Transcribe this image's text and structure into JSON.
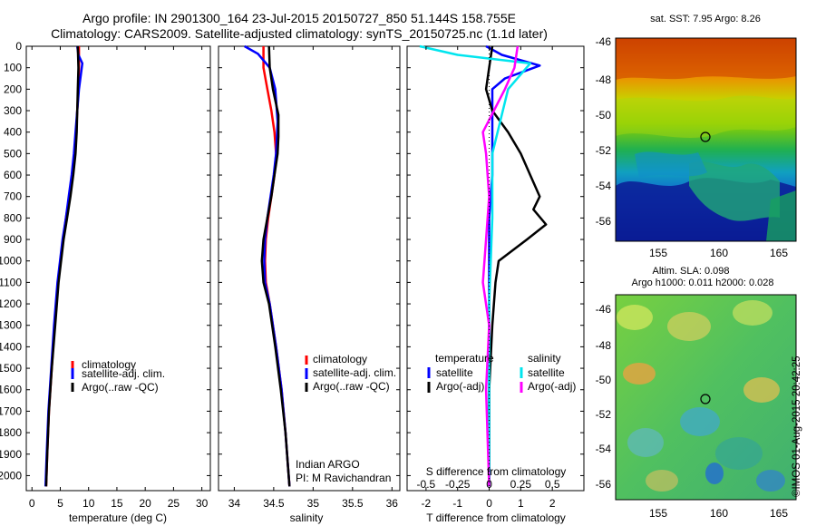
{
  "header": {
    "line1": "Argo profile: IN 2901300_164 23-Jul-2015 20150727_850 51.144S 158.755E",
    "line2": "Climatology: CARS2009. Satellite-adjusted climatology: synTS_20150725.nc (1.1d later)"
  },
  "colors": {
    "climatology": "#ff0000",
    "satellite": "#0000ff",
    "argo": "#000000",
    "sal_satellite": "#00e5ee",
    "sal_argo": "#ff00ff"
  },
  "chart_data": [
    {
      "type": "line",
      "name": "temperature-profile",
      "xlabel": "temperature (deg C)",
      "ylabel": "",
      "xlim": [
        -1,
        31.5
      ],
      "ylim": [
        2070,
        0
      ],
      "xticks": [
        "0",
        "5",
        "10",
        "15",
        "20",
        "25",
        "30"
      ],
      "xtick_values": [
        0,
        5,
        10,
        15,
        20,
        25,
        30
      ],
      "yticks": [
        0,
        100,
        200,
        300,
        400,
        500,
        600,
        700,
        800,
        900,
        1000,
        1100,
        1200,
        1300,
        1400,
        1500,
        1600,
        1700,
        1800,
        1900,
        2000
      ],
      "legend": [
        "climatology",
        "satellite-adj. clim.",
        "Argo(..raw -QC)"
      ],
      "series": [
        {
          "name": "climatology",
          "color": "#ff0000",
          "x": [
            8.3,
            8.3,
            8.2,
            8.0,
            7.8,
            7.5,
            7.1,
            6.6,
            6.0,
            5.5,
            4.6,
            4.0,
            3.5,
            3.0,
            2.7,
            2.5
          ],
          "y": [
            0,
            100,
            200,
            300,
            400,
            500,
            600,
            700,
            800,
            900,
            1100,
            1300,
            1500,
            1700,
            1900,
            2050
          ]
        },
        {
          "name": "satellite-adj. clim.",
          "color": "#0000ff",
          "x": [
            8.0,
            8.2,
            8.9,
            8.3,
            8.0,
            7.7,
            7.4,
            7.0,
            6.5,
            6.0,
            5.4,
            4.5,
            3.9,
            3.4,
            2.9,
            2.6,
            2.4
          ],
          "y": [
            0,
            40,
            80,
            200,
            300,
            400,
            500,
            600,
            700,
            800,
            900,
            1100,
            1300,
            1500,
            1700,
            1900,
            2050
          ]
        },
        {
          "name": "Argo(..raw -QC)",
          "color": "#000000",
          "x": [
            8.1,
            8.2,
            8.1,
            8.0,
            7.9,
            7.7,
            7.3,
            6.8,
            6.2,
            5.6,
            4.7,
            4.1,
            3.5,
            3.0,
            2.7,
            2.5
          ],
          "y": [
            0,
            100,
            200,
            300,
            400,
            500,
            600,
            700,
            800,
            900,
            1100,
            1300,
            1500,
            1700,
            1900,
            2050
          ]
        }
      ]
    },
    {
      "type": "line",
      "name": "salinity-profile",
      "xlabel": "salinity",
      "xlim": [
        33.8,
        36.1
      ],
      "ylim": [
        2070,
        0
      ],
      "xticks": [
        "34",
        "34.5",
        "35",
        "35.5",
        "36"
      ],
      "xtick_values": [
        34,
        34.5,
        35,
        35.5,
        36
      ],
      "legend": [
        "climatology",
        "satellite-adj. clim.",
        "Argo(..raw -QC)"
      ],
      "annotation": [
        "Indian ARGO",
        "PI: M Ravichandran"
      ],
      "series": [
        {
          "name": "climatology",
          "color": "#ff0000",
          "x": [
            34.37,
            34.37,
            34.42,
            34.47,
            34.51,
            34.53,
            34.51,
            34.47,
            34.43,
            34.4,
            34.39,
            34.4,
            34.45,
            34.53,
            34.6,
            34.65,
            34.68,
            34.7
          ],
          "y": [
            0,
            100,
            200,
            300,
            400,
            500,
            600,
            700,
            800,
            900,
            1000,
            1100,
            1200,
            1400,
            1600,
            1800,
            1950,
            2050
          ]
        },
        {
          "name": "satellite-adj. clim.",
          "color": "#0000ff",
          "x": [
            34.13,
            34.3,
            34.45,
            34.52,
            34.55,
            34.53,
            34.5,
            34.46,
            34.42,
            34.39,
            34.38,
            34.39,
            34.45,
            34.53,
            34.6,
            34.65,
            34.68,
            34.7
          ],
          "y": [
            0,
            35,
            100,
            200,
            350,
            500,
            600,
            700,
            800,
            900,
            1000,
            1100,
            1200,
            1400,
            1600,
            1800,
            1950,
            2050
          ]
        },
        {
          "name": "Argo(..raw -QC)",
          "color": "#000000",
          "x": [
            34.44,
            34.45,
            34.49,
            34.56,
            34.56,
            34.55,
            34.51,
            34.47,
            34.42,
            34.37,
            34.35,
            34.37,
            34.44,
            34.52,
            34.59,
            34.65,
            34.68,
            34.7
          ],
          "y": [
            0,
            100,
            200,
            320,
            420,
            500,
            600,
            700,
            800,
            900,
            1000,
            1100,
            1200,
            1400,
            1600,
            1800,
            1950,
            2050
          ]
        }
      ]
    },
    {
      "type": "line",
      "name": "difference-profile",
      "xlabel": "T difference from climatology",
      "xlabel2": "S difference from climatology",
      "xlim": [
        -2.6,
        3.0
      ],
      "ylim": [
        2070,
        0
      ],
      "xticks": [
        "-2",
        "-1",
        "0",
        "1",
        "2"
      ],
      "xtick_values": [
        -2,
        -1,
        0,
        1,
        2
      ],
      "xticks2": [
        "-0.5",
        "-0.25",
        "0",
        "0.25",
        "0.5"
      ],
      "xtick2_values": [
        -2,
        -1,
        0,
        1,
        2
      ],
      "legend": {
        "temperature_title": "temperature",
        "salinity_title": "salinity",
        "temperature": [
          "satellite",
          "Argo(-adj)"
        ],
        "salinity": [
          "satellite",
          "Argo(-adj)"
        ]
      },
      "series": [
        {
          "name": "T satellite",
          "color": "#0000ff",
          "x": [
            -0.1,
            0.4,
            1.6,
            0.5,
            0.1,
            0.1,
            0.1,
            0.0,
            0.0,
            0.0,
            0.0
          ],
          "y": [
            0,
            40,
            90,
            150,
            200,
            400,
            600,
            800,
            1200,
            1600,
            2050
          ]
        },
        {
          "name": "T Argo(-adj)",
          "color": "#000000",
          "x": [
            0.1,
            0.0,
            -0.1,
            0.1,
            0.6,
            1.0,
            1.3,
            1.6,
            1.4,
            1.8,
            1.2,
            0.3,
            0.2,
            0.1,
            0.0,
            0.0
          ],
          "y": [
            0,
            100,
            200,
            300,
            400,
            500,
            600,
            700,
            760,
            830,
            900,
            1000,
            1100,
            1300,
            1600,
            2050
          ]
        },
        {
          "name": "S satellite",
          "color": "#00e5ee",
          "x": [
            -2.2,
            -1.0,
            1.3,
            0.6,
            0.1,
            0.1,
            0.0,
            0.0,
            0.0
          ],
          "y": [
            0,
            40,
            80,
            200,
            500,
            800,
            1200,
            1600,
            2050
          ]
        },
        {
          "name": "S Argo(-adj)",
          "color": "#ff00ff",
          "x": [
            0.9,
            0.8,
            0.5,
            -0.2,
            -0.1,
            0.0,
            -0.1,
            -0.2,
            0.0,
            -0.1,
            0.0
          ],
          "y": [
            0,
            100,
            200,
            400,
            500,
            700,
            900,
            1100,
            1300,
            1600,
            2050
          ]
        }
      ]
    }
  ],
  "maps": [
    {
      "title": "sat. SST: 7.95 Argo: 8.26",
      "yticks": [
        "-46",
        "-48",
        "-50",
        "-52",
        "-54",
        "-56"
      ],
      "xticks": [
        "155",
        "160",
        "165"
      ]
    },
    {
      "title1": "Altim. SLA: 0.098",
      "title2": "Argo h1000: 0.011 h2000: 0.028",
      "yticks": [
        "-46",
        "-48",
        "-50",
        "-52",
        "-54",
        "-56"
      ],
      "xticks": [
        "155",
        "160",
        "165"
      ]
    }
  ],
  "stamp": "©IMOS 01-Aug-2015 20:42:25"
}
